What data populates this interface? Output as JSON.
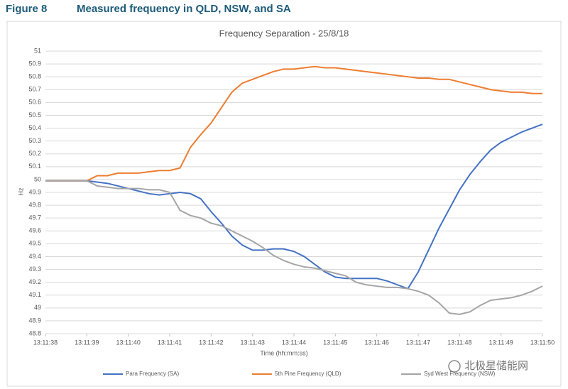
{
  "header": {
    "label": "Figure 8",
    "title": "Measured frequency in QLD, NSW, and SA"
  },
  "watermark": "北极星储能网",
  "chart_data": {
    "type": "line",
    "title": "Frequency Separation - 25/8/18",
    "x_label": "Time (hh:mm:ss)",
    "y_label": "Hz",
    "x": [
      47498,
      47498.25,
      47498.5,
      47498.75,
      47499,
      47499.25,
      47499.5,
      47499.75,
      47500,
      47500.25,
      47500.5,
      47500.75,
      47501,
      47501.25,
      47501.5,
      47501.75,
      47502,
      47502.25,
      47502.5,
      47502.75,
      47503,
      47503.25,
      47503.5,
      47503.75,
      47504,
      47504.25,
      47504.5,
      47504.75,
      47505,
      47505.25,
      47505.5,
      47505.75,
      47506,
      47506.25,
      47506.5,
      47506.75,
      47507,
      47507.25,
      47507.5,
      47507.75,
      47508,
      47508.25,
      47508.5,
      47508.75,
      47509,
      47509.25,
      47509.5,
      47509.75,
      47510
    ],
    "xlim": [
      47498,
      47510
    ],
    "xticks": [
      {
        "value": 47498,
        "label": "13:11:38"
      },
      {
        "value": 47499,
        "label": "13:11:39"
      },
      {
        "value": 47500,
        "label": "13:11:40"
      },
      {
        "value": 47501,
        "label": "13:11:41"
      },
      {
        "value": 47502,
        "label": "13:11:42"
      },
      {
        "value": 47503,
        "label": "13:11:43"
      },
      {
        "value": 47504,
        "label": "13:11:44"
      },
      {
        "value": 47505,
        "label": "13:11:45"
      },
      {
        "value": 47506,
        "label": "13:11:46"
      },
      {
        "value": 47507,
        "label": "13:11:47"
      },
      {
        "value": 47508,
        "label": "13:11:48"
      },
      {
        "value": 47509,
        "label": "13:11:49"
      },
      {
        "value": 47510,
        "label": "13:11:50"
      }
    ],
    "ylim": [
      48.8,
      51
    ],
    "yticks": [
      48.8,
      48.9,
      49,
      49.1,
      49.2,
      49.3,
      49.4,
      49.5,
      49.6,
      49.7,
      49.8,
      49.9,
      50,
      50.1,
      50.2,
      50.3,
      50.4,
      50.5,
      50.6,
      50.7,
      50.8,
      50.9,
      51
    ],
    "grid": true,
    "legend": "bottom",
    "series": [
      {
        "name": "Para Frequency (SA)",
        "color": "#4472c4",
        "values": [
          49.99,
          49.99,
          49.99,
          49.99,
          49.99,
          49.98,
          49.97,
          49.95,
          49.93,
          49.91,
          49.89,
          49.88,
          49.89,
          49.9,
          49.89,
          49.85,
          49.75,
          49.66,
          49.56,
          49.49,
          49.45,
          49.45,
          49.46,
          49.46,
          49.44,
          49.4,
          49.34,
          49.28,
          49.24,
          49.23,
          49.23,
          49.23,
          49.23,
          49.21,
          49.18,
          49.15,
          49.28,
          49.45,
          49.62,
          49.77,
          49.92,
          50.04,
          50.14,
          50.23,
          50.29,
          50.33,
          50.37,
          50.4,
          50.43
        ]
      },
      {
        "name": "5th Pine Frequency (QLD)",
        "color": "#ed7d31",
        "values": [
          49.99,
          49.99,
          49.99,
          49.99,
          49.99,
          50.03,
          50.03,
          50.05,
          50.05,
          50.05,
          50.06,
          50.07,
          50.07,
          50.09,
          50.25,
          50.35,
          50.44,
          50.56,
          50.68,
          50.75,
          50.78,
          50.81,
          50.84,
          50.86,
          50.86,
          50.87,
          50.88,
          50.87,
          50.87,
          50.86,
          50.85,
          50.84,
          50.83,
          50.82,
          50.81,
          50.8,
          50.79,
          50.79,
          50.78,
          50.78,
          50.76,
          50.74,
          50.72,
          50.7,
          50.69,
          50.68,
          50.68,
          50.67,
          50.67
        ]
      },
      {
        "name": "Syd West Frequency (NSW)",
        "color": "#a5a5a5",
        "values": [
          49.99,
          49.99,
          49.99,
          49.99,
          49.99,
          49.95,
          49.94,
          49.93,
          49.93,
          49.93,
          49.92,
          49.92,
          49.9,
          49.76,
          49.72,
          49.7,
          49.66,
          49.64,
          49.6,
          49.56,
          49.52,
          49.47,
          49.41,
          49.37,
          49.34,
          49.32,
          49.31,
          49.29,
          49.27,
          49.25,
          49.2,
          49.18,
          49.17,
          49.16,
          49.16,
          49.15,
          49.13,
          49.1,
          49.04,
          48.96,
          48.95,
          48.97,
          49.02,
          49.06,
          49.07,
          49.08,
          49.1,
          49.13,
          49.17
        ]
      }
    ]
  }
}
